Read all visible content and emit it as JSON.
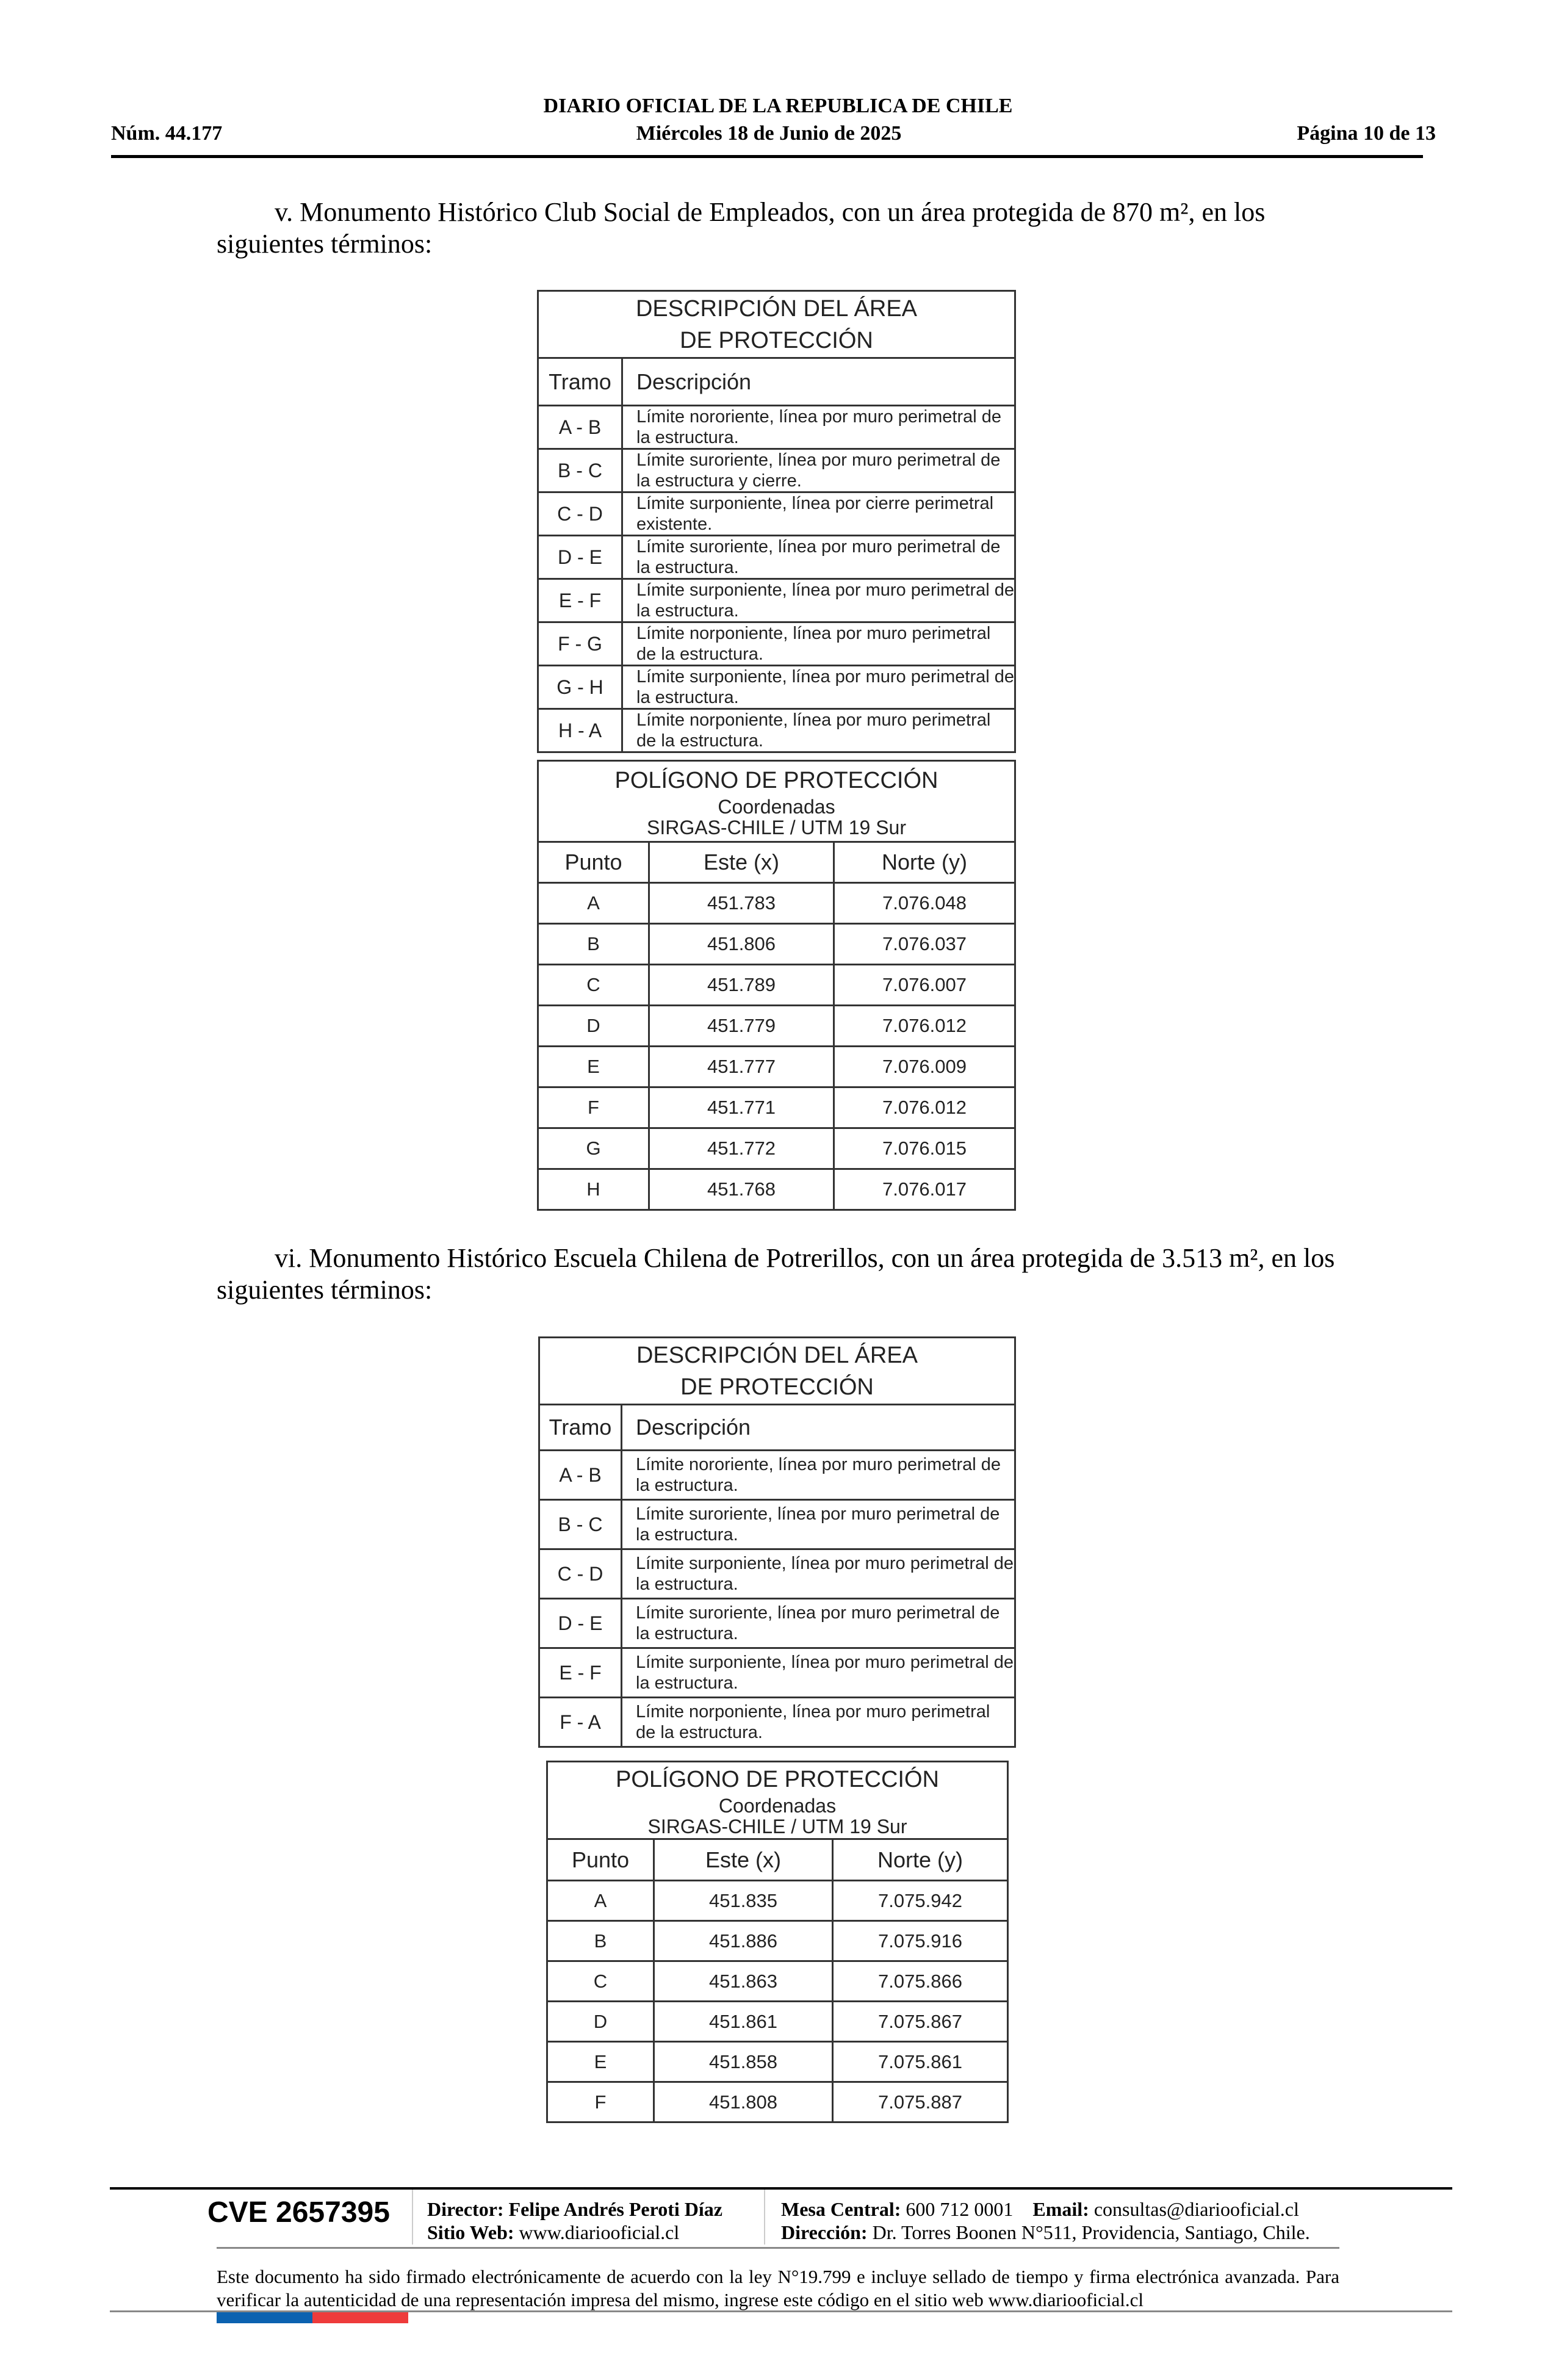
{
  "header": {
    "title": "DIARIO OFICIAL DE LA REPUBLICA DE CHILE",
    "number": "Núm. 44.177",
    "date": "Miércoles 18 de Junio de 2025",
    "page": "Página 10 de 13"
  },
  "section_v": {
    "text": "v. Monumento Histórico Club Social de Empleados, con un área protegida de 870 m², en los siguientes términos:",
    "desc_table": {
      "title_line1": "DESCRIPCIÓN DEL ÁREA",
      "title_line2": "DE PROTECCIÓN",
      "col_tramo": "Tramo",
      "col_desc": "Descripción",
      "rows": [
        {
          "tramo": "A - B",
          "desc": "Límite nororiente, línea por muro perimetral de la estructura."
        },
        {
          "tramo": "B - C",
          "desc": "Límite suroriente, línea por muro perimetral de la estructura y cierre."
        },
        {
          "tramo": "C - D",
          "desc": "Límite surponiente, línea por cierre perimetral existente."
        },
        {
          "tramo": "D - E",
          "desc": "Límite suroriente, línea por muro perimetral de la estructura."
        },
        {
          "tramo": "E - F",
          "desc": "Límite surponiente, línea por muro perimetral de la estructura."
        },
        {
          "tramo": "F - G",
          "desc": "Límite norponiente, línea por muro perimetral de la estructura."
        },
        {
          "tramo": "G - H",
          "desc": "Límite surponiente, línea por muro perimetral de la estructura."
        },
        {
          "tramo": "H - A",
          "desc": "Límite norponiente, línea por muro perimetral de la estructura."
        }
      ]
    },
    "coord_table": {
      "title": "POLÍGONO DE PROTECCIÓN",
      "subtitle1": "Coordenadas",
      "subtitle2": "SIRGAS-CHILE / UTM 19 Sur",
      "col_punto": "Punto",
      "col_este": "Este (x)",
      "col_norte": "Norte (y)",
      "rows": [
        {
          "p": "A",
          "x": "451.783",
          "y": "7.076.048"
        },
        {
          "p": "B",
          "x": "451.806",
          "y": "7.076.037"
        },
        {
          "p": "C",
          "x": "451.789",
          "y": "7.076.007"
        },
        {
          "p": "D",
          "x": "451.779",
          "y": "7.076.012"
        },
        {
          "p": "E",
          "x": "451.777",
          "y": "7.076.009"
        },
        {
          "p": "F",
          "x": "451.771",
          "y": "7.076.012"
        },
        {
          "p": "G",
          "x": "451.772",
          "y": "7.076.015"
        },
        {
          "p": "H",
          "x": "451.768",
          "y": "7.076.017"
        }
      ]
    }
  },
  "section_vi": {
    "text": "vi. Monumento Histórico Escuela Chilena de Potrerillos, con un área protegida de 3.513 m², en los siguientes términos:",
    "desc_table": {
      "title_line1": "DESCRIPCIÓN DEL ÁREA",
      "title_line2": "DE PROTECCIÓN",
      "col_tramo": "Tramo",
      "col_desc": "Descripción",
      "rows": [
        {
          "tramo": "A - B",
          "desc": "Límite nororiente, línea por muro perimetral de la estructura."
        },
        {
          "tramo": "B - C",
          "desc": "Límite suroriente, línea por muro perimetral de la estructura."
        },
        {
          "tramo": "C - D",
          "desc": "Límite surponiente, línea por muro perimetral de la estructura."
        },
        {
          "tramo": "D - E",
          "desc": "Límite suroriente, línea por muro perimetral de la estructura."
        },
        {
          "tramo": "E - F",
          "desc": "Límite surponiente, línea por muro perimetral de la estructura."
        },
        {
          "tramo": "F - A",
          "desc": "Límite norponiente, línea por muro perimetral de la estructura."
        }
      ]
    },
    "coord_table": {
      "title": "POLÍGONO DE PROTECCIÓN",
      "subtitle1": "Coordenadas",
      "subtitle2": "SIRGAS-CHILE / UTM 19 Sur",
      "col_punto": "Punto",
      "col_este": "Este (x)",
      "col_norte": "Norte (y)",
      "rows": [
        {
          "p": "A",
          "x": "451.835",
          "y": "7.075.942"
        },
        {
          "p": "B",
          "x": "451.886",
          "y": "7.075.916"
        },
        {
          "p": "C",
          "x": "451.863",
          "y": "7.075.866"
        },
        {
          "p": "D",
          "x": "451.861",
          "y": "7.075.867"
        },
        {
          "p": "E",
          "x": "451.858",
          "y": "7.075.861"
        },
        {
          "p": "F",
          "x": "451.808",
          "y": "7.075.887"
        }
      ]
    }
  },
  "footer": {
    "cve": "CVE 2657395",
    "director_label": "Director:",
    "director": "Felipe Andrés Peroti Díaz",
    "web_label": "Sitio Web:",
    "web": "www.diariooficial.cl",
    "mesa_label": "Mesa Central:",
    "mesa": "600 712 0001",
    "email_label": "Email:",
    "email": "consultas@diariooficial.cl",
    "dir_label": "Dirección:",
    "dir": "Dr. Torres Boonen N°511, Providencia, Santiago, Chile.",
    "disclaimer": "Este documento ha sido firmado electrónicamente de acuerdo con la ley N°19.799 e incluye sellado de tiempo y firma electrónica avanzada. Para verificar la autenticidad de una representación impresa del mismo, ingrese este código en el sitio web www.diariooficial.cl",
    "colors": {
      "blue": "#0b62b0",
      "red": "#ee3b3b"
    }
  }
}
